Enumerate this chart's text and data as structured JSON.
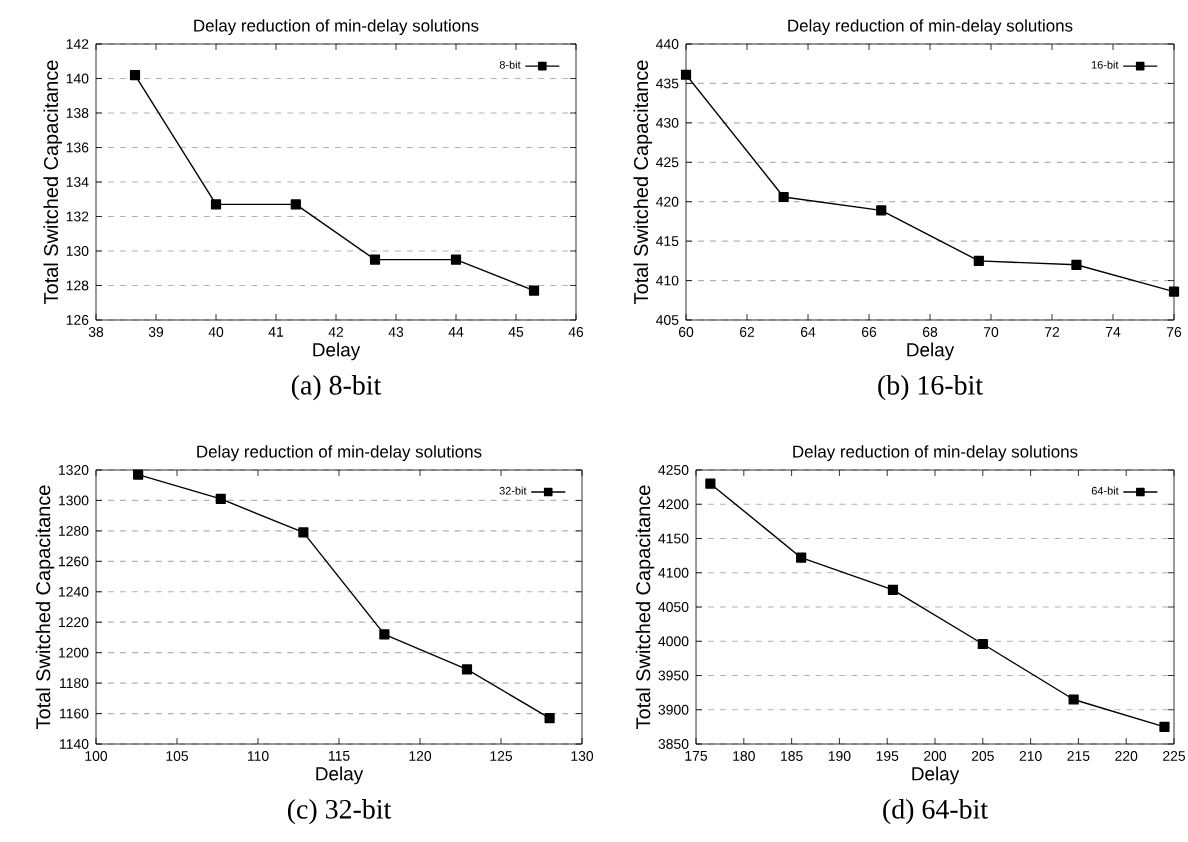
{
  "chart_data": [
    {
      "type": "line",
      "title": "Delay reduction of min-delay solutions",
      "xlabel": "Delay",
      "ylabel": "Total Switched Capacitance",
      "x": [
        38.65,
        40,
        41.33,
        42.65,
        44,
        45.3
      ],
      "series": [
        {
          "name": "8-bit",
          "color": "#000000",
          "values": [
            140.2,
            132.7,
            132.7,
            129.5,
            129.5,
            127.7
          ]
        }
      ],
      "xlim": [
        38,
        46
      ],
      "ylim": [
        126,
        142
      ],
      "xticks": [
        38,
        39,
        40,
        41,
        42,
        43,
        44,
        45,
        46
      ],
      "yticks": [
        126,
        128,
        130,
        132,
        134,
        136,
        138,
        140,
        142
      ],
      "grid": "y",
      "legend": "top right",
      "marker": "square",
      "line_style": "solid",
      "annotations": [
        "(a) 8-bit"
      ]
    },
    {
      "type": "line",
      "title": "Delay reduction of min-delay solutions",
      "xlabel": "Delay",
      "ylabel": "Total Switched Capacitance",
      "x": [
        60,
        63.2,
        66.4,
        69.6,
        72.8,
        76
      ],
      "series": [
        {
          "name": "16-bit",
          "color": "#000000",
          "values": [
            436.1,
            420.6,
            418.9,
            412.5,
            412,
            408.6
          ]
        }
      ],
      "xlim": [
        60,
        76
      ],
      "ylim": [
        405,
        440
      ],
      "xticks": [
        60,
        62,
        64,
        66,
        68,
        70,
        72,
        74,
        76
      ],
      "yticks": [
        405,
        410,
        415,
        420,
        425,
        430,
        435,
        440
      ],
      "grid": "y",
      "legend": "top right",
      "marker": "square",
      "line_style": "solid",
      "annotations": [
        "(b) 16-bit"
      ]
    },
    {
      "type": "line",
      "title": "Delay reduction of min-delay solutions",
      "xlabel": "Delay",
      "ylabel": "Total Switched Capacitance",
      "x": [
        102.6,
        107.7,
        112.8,
        117.8,
        122.9,
        128
      ],
      "series": [
        {
          "name": "32-bit",
          "color": "#000000",
          "values": [
            1317,
            1301,
            1279,
            1212,
            1189,
            1157
          ]
        }
      ],
      "xlim": [
        100,
        130
      ],
      "ylim": [
        1140,
        1320
      ],
      "xticks": [
        100,
        105,
        110,
        115,
        120,
        125,
        130
      ],
      "yticks": [
        1140,
        1160,
        1180,
        1200,
        1220,
        1240,
        1260,
        1280,
        1300,
        1320
      ],
      "grid": "y",
      "legend": "top right",
      "marker": "square",
      "line_style": "solid",
      "annotations": [
        "(c) 32-bit"
      ]
    },
    {
      "type": "line",
      "title": "Delay reduction of min-delay solutions",
      "xlabel": "Delay",
      "ylabel": "Total Switched Capacitance",
      "x": [
        176.5,
        186,
        195.6,
        205,
        214.5,
        224
      ],
      "series": [
        {
          "name": "64-bit",
          "color": "#000000",
          "values": [
            4230,
            4122,
            4075,
            3996,
            3915,
            3875
          ]
        }
      ],
      "xlim": [
        175,
        225
      ],
      "ylim": [
        3850,
        4250
      ],
      "xticks": [
        175,
        180,
        185,
        190,
        195,
        200,
        205,
        210,
        215,
        220,
        225
      ],
      "yticks": [
        3850,
        3900,
        3950,
        4000,
        4050,
        4100,
        4150,
        4200,
        4250
      ],
      "grid": "y",
      "legend": "top right",
      "marker": "square",
      "line_style": "solid",
      "annotations": [
        "(d) 64-bit"
      ]
    }
  ]
}
